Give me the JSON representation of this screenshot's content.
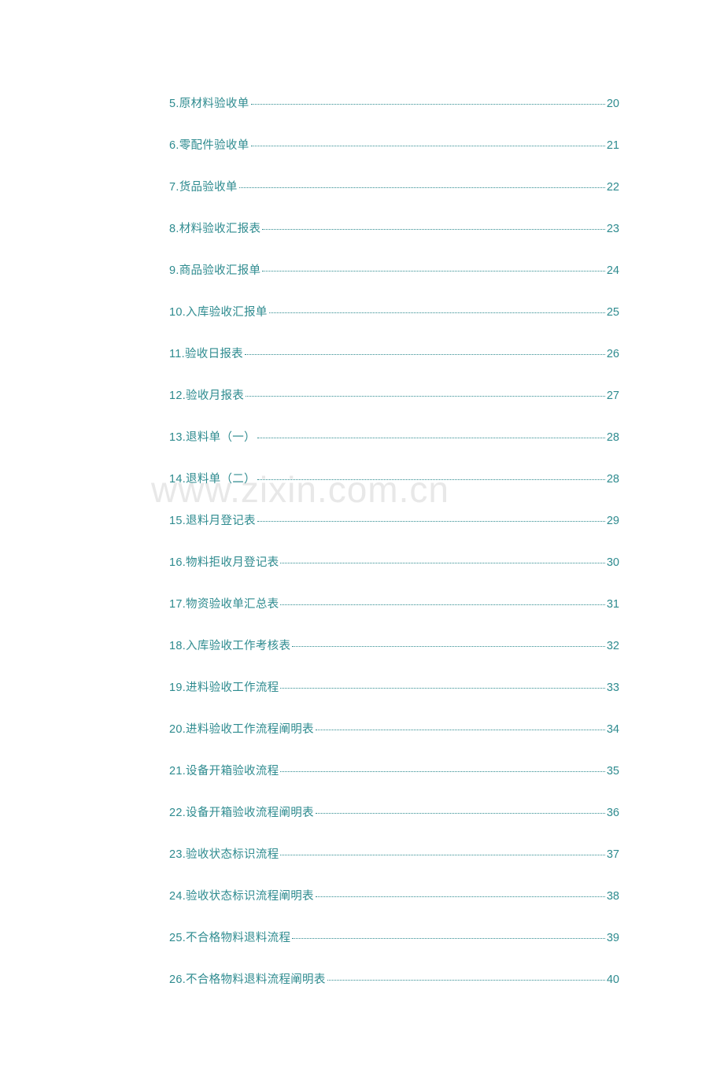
{
  "watermark_text": "www.zixin.com.cn",
  "link_color": "#2e8b8f",
  "watermark_color": "#e8e8e8",
  "background_color": "#ffffff",
  "font_size": 14.5,
  "line_spacing": 32,
  "toc_entries": [
    {
      "label": "5.原材料验收单",
      "page": "20"
    },
    {
      "label": "6.零配件验收单",
      "page": "21"
    },
    {
      "label": "7.货品验收单",
      "page": "22"
    },
    {
      "label": "8.材料验收汇报表",
      "page": "23"
    },
    {
      "label": "9.商品验收汇报单",
      "page": "24"
    },
    {
      "label": "10.入库验收汇报单",
      "page": "25"
    },
    {
      "label": "11.验收日报表",
      "page": "26"
    },
    {
      "label": "12.验收月报表",
      "page": "27"
    },
    {
      "label": "13.退料单（一）",
      "page": "28"
    },
    {
      "label": "14.退料单（二）",
      "page": "28"
    },
    {
      "label": "15.退料月登记表",
      "page": "29"
    },
    {
      "label": "16.物料拒收月登记表",
      "page": "30"
    },
    {
      "label": "17.物资验收单汇总表",
      "page": "31"
    },
    {
      "label": "18.入库验收工作考核表",
      "page": "32"
    },
    {
      "label": "19.进料验收工作流程",
      "page": "33"
    },
    {
      "label": "20.进料验收工作流程阐明表",
      "page": "34"
    },
    {
      "label": "21.设备开箱验收流程",
      "page": "35"
    },
    {
      "label": "22.设备开箱验收流程阐明表",
      "page": "36"
    },
    {
      "label": "23.验收状态标识流程",
      "page": "37"
    },
    {
      "label": "24.验收状态标识流程阐明表",
      "page": "38"
    },
    {
      "label": "25.不合格物料退料流程",
      "page": "39"
    },
    {
      "label": "26.不合格物料退料流程阐明表",
      "page": "40"
    }
  ]
}
